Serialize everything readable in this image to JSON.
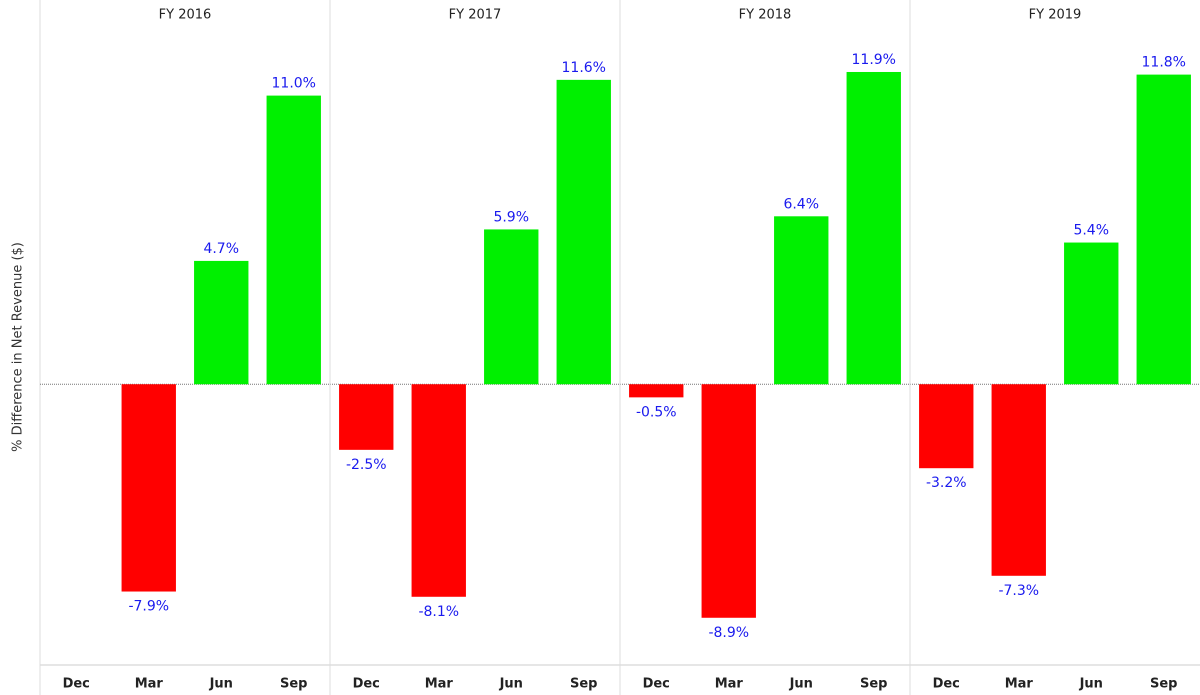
{
  "chart_data": {
    "type": "bar",
    "y_label": "% Difference in Net Revenue ($)",
    "ylim": [
      -10.7,
      13.5
    ],
    "positive_color": "#00f000",
    "negative_color": "#ff0000",
    "label_color": "#1a1aee",
    "panels": [
      {
        "name": "FY 2016",
        "categories": [
          "Dec",
          "Mar",
          "Jun",
          "Sep"
        ],
        "values": [
          null,
          -7.9,
          4.7,
          11.0
        ],
        "value_labels": [
          null,
          "-7.9%",
          "4.7%",
          "11.0%"
        ]
      },
      {
        "name": "FY 2017",
        "categories": [
          "Dec",
          "Mar",
          "Jun",
          "Sep"
        ],
        "values": [
          -2.5,
          -8.1,
          5.9,
          11.6
        ],
        "value_labels": [
          "-2.5%",
          "-8.1%",
          "5.9%",
          "11.6%"
        ]
      },
      {
        "name": "FY 2018",
        "categories": [
          "Dec",
          "Mar",
          "Jun",
          "Sep"
        ],
        "values": [
          -0.5,
          -8.9,
          6.4,
          11.9
        ],
        "value_labels": [
          "-0.5%",
          "-8.9%",
          "6.4%",
          "11.9%"
        ]
      },
      {
        "name": "FY 2019",
        "categories": [
          "Dec",
          "Mar",
          "Jun",
          "Sep"
        ],
        "values": [
          -3.2,
          -7.3,
          5.4,
          11.8
        ],
        "value_labels": [
          "-3.2%",
          "-7.3%",
          "5.4%",
          "11.8%"
        ]
      }
    ]
  }
}
